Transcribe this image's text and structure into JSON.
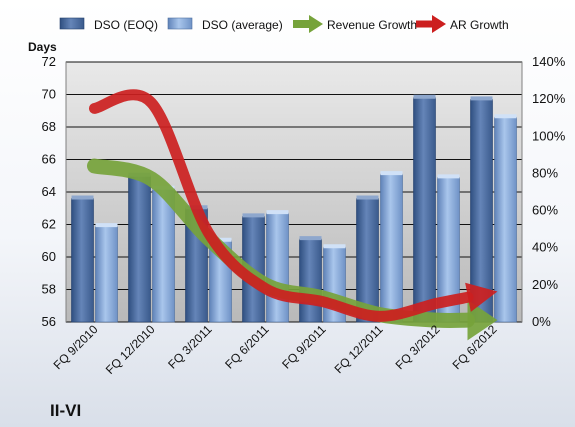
{
  "chart_data": {
    "type": "bar",
    "company": "II-VI",
    "categories": [
      "FQ 9/2010",
      "FQ 12/2010",
      "FQ 3/2011",
      "FQ 6/2011",
      "FQ 9/2011",
      "FQ 12/2011",
      "FQ 3/2012",
      "FQ 6/2012"
    ],
    "ylabel": "Days",
    "ylim": [
      56,
      72
    ],
    "y_ticks": [
      "56",
      "58",
      "60",
      "62",
      "64",
      "66",
      "68",
      "70",
      "72"
    ],
    "y2lim": [
      0,
      140
    ],
    "y2_ticks": [
      "0%",
      "20%",
      "40%",
      "60%",
      "80%",
      "100%",
      "120%",
      "140%"
    ],
    "legend_position": "top",
    "series": [
      {
        "name": "DSO (EOQ)",
        "type": "bar",
        "axis": "left",
        "color": "#4f6fa0",
        "values": [
          63.6,
          65.0,
          63.0,
          62.5,
          61.1,
          63.6,
          69.8,
          69.7
        ]
      },
      {
        "name": "DSO (average)",
        "type": "bar",
        "axis": "left",
        "color": "#8fb0dd",
        "values": [
          61.9,
          64.2,
          61.0,
          62.7,
          60.6,
          65.1,
          64.9,
          68.6
        ]
      },
      {
        "name": "Revenue Growth",
        "type": "line",
        "axis": "right",
        "color": "#76a33b",
        "values": [
          84,
          77,
          45,
          20,
          13,
          4,
          1,
          1
        ]
      },
      {
        "name": "AR Growth",
        "type": "line",
        "axis": "right",
        "color": "#cc1f1f",
        "values": [
          115,
          118,
          48,
          18,
          11,
          3,
          10,
          16
        ]
      }
    ]
  }
}
